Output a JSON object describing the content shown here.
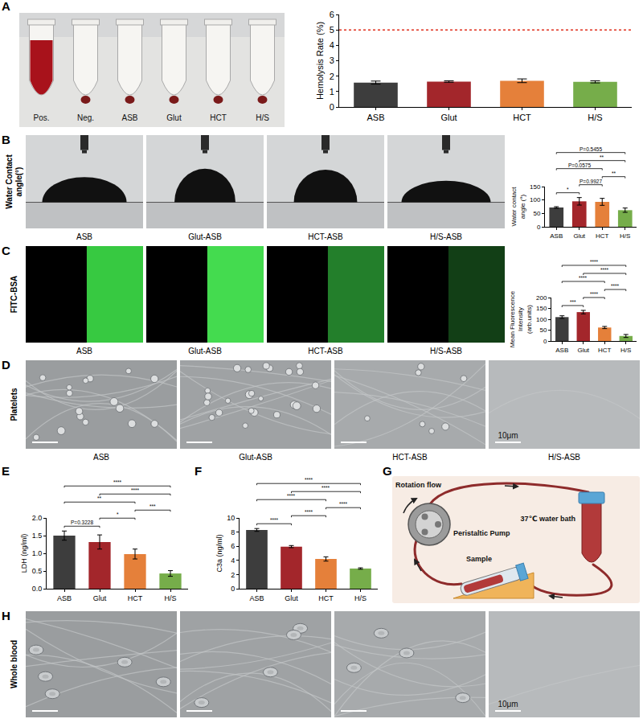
{
  "panels": [
    "A",
    "B",
    "C",
    "D",
    "E",
    "F",
    "G",
    "H"
  ],
  "figure": {
    "A": {
      "photo_labels": [
        "Pos.",
        "Neg.",
        "ASB",
        "Glut",
        "HCT",
        "H/S"
      ]
    },
    "B": {
      "row_label": "Water Contact angle(°)",
      "image_labels": [
        "ASB",
        "Glut-ASB",
        "HCT-ASB",
        "H/S-ASB"
      ]
    },
    "C": {
      "row_label": "FITC-BSA",
      "image_labels": [
        "ASB",
        "Glut-ASB",
        "HCT-ASB",
        "H/S-ASB"
      ]
    },
    "D": {
      "row_label": "Platelets",
      "image_labels": [
        "ASB",
        "Glut-ASB",
        "HCT-ASB",
        "H/S-ASB"
      ],
      "scale_label": "10μm"
    },
    "G": {
      "labels": {
        "motion": "Rotation flow",
        "pump": "Peristaltic Pump",
        "bath": "37℃ water bath",
        "sample": "Sample"
      }
    },
    "H": {
      "row_label": "Whole blood",
      "scale_label": "10μm"
    }
  },
  "chart_data": [
    {
      "panel": "A",
      "type": "bar",
      "ylabel": "Hemolysis Rate (%)",
      "categories": [
        "ASB",
        "Glut",
        "HCT",
        "H/S"
      ],
      "values": [
        1.58,
        1.65,
        1.7,
        1.63
      ],
      "errors": [
        0.1,
        0.05,
        0.12,
        0.07
      ],
      "colors": [
        "#3d3d3d",
        "#a3262b",
        "#e5803a",
        "#76ad4a"
      ],
      "ylim": [
        0,
        6
      ],
      "yticks": [
        0,
        1,
        2,
        3,
        4,
        5,
        6
      ],
      "threshold": 5
    },
    {
      "panel": "B",
      "type": "bar",
      "ylabel": "Water contact angle (°)",
      "categories": [
        "ASB",
        "Glut",
        "HCT",
        "H/S"
      ],
      "values": [
        72,
        95,
        93,
        62
      ],
      "errors": [
        3,
        14,
        13,
        8
      ],
      "colors": [
        "#3d3d3d",
        "#a3262b",
        "#e5803a",
        "#76ad4a"
      ],
      "ylim": [
        0,
        150
      ],
      "yticks": [
        0,
        50,
        100,
        150
      ],
      "comparisons": [
        {
          "a": "ASB",
          "b": "Glut",
          "label": "*"
        },
        {
          "a": "Glut",
          "b": "HCT",
          "label": "P=0.9927"
        },
        {
          "a": "HCT",
          "b": "H/S",
          "label": "**"
        },
        {
          "a": "ASB",
          "b": "HCT",
          "label": "P=0.0575"
        },
        {
          "a": "Glut",
          "b": "H/S",
          "label": "**"
        },
        {
          "a": "ASB",
          "b": "H/S",
          "label": "P=0.5455"
        }
      ]
    },
    {
      "panel": "C",
      "type": "bar",
      "ylabel": "Mean Fluorescence Intensity (arb.units)",
      "categories": [
        "ASB",
        "Glut",
        "HCT",
        "H/S"
      ],
      "values": [
        110,
        133,
        62,
        23
      ],
      "errors": [
        6,
        8,
        5,
        7
      ],
      "colors": [
        "#3d3d3d",
        "#a3262b",
        "#e5803a",
        "#76ad4a"
      ],
      "ylim": [
        0,
        200
      ],
      "yticks": [
        0,
        50,
        100,
        150,
        200
      ],
      "comparisons": [
        {
          "a": "ASB",
          "b": "Glut",
          "label": "***"
        },
        {
          "a": "Glut",
          "b": "HCT",
          "label": "****"
        },
        {
          "a": "HCT",
          "b": "H/S",
          "label": "****"
        },
        {
          "a": "ASB",
          "b": "HCT",
          "label": "****"
        },
        {
          "a": "Glut",
          "b": "H/S",
          "label": "****"
        },
        {
          "a": "ASB",
          "b": "H/S",
          "label": "****"
        }
      ]
    },
    {
      "panel": "E",
      "type": "bar",
      "ylabel": "LDH (ng/ml)",
      "categories": [
        "ASB",
        "Glut",
        "HCT",
        "H/S"
      ],
      "values": [
        1.5,
        1.32,
        0.98,
        0.43
      ],
      "errors": [
        0.13,
        0.2,
        0.14,
        0.08
      ],
      "colors": [
        "#3d3d3d",
        "#a3262b",
        "#e5803a",
        "#76ad4a"
      ],
      "ylim": [
        0,
        2
      ],
      "yticks": [
        {
          "value": 0,
          "label": "0.0"
        },
        {
          "value": 0.5,
          "label": "0.5"
        },
        {
          "value": 1,
          "label": "1.0"
        },
        {
          "value": 1.5,
          "label": "1.5"
        },
        {
          "value": 2,
          "label": "2.0"
        }
      ],
      "comparisons": [
        {
          "a": "ASB",
          "b": "Glut",
          "label": "P=0.3228"
        },
        {
          "a": "Glut",
          "b": "HCT",
          "label": "*"
        },
        {
          "a": "HCT",
          "b": "H/S",
          "label": "***"
        },
        {
          "a": "ASB",
          "b": "HCT",
          "label": "**"
        },
        {
          "a": "Glut",
          "b": "H/S",
          "label": "****"
        },
        {
          "a": "ASB",
          "b": "H/S",
          "label": "****"
        }
      ]
    },
    {
      "panel": "F",
      "type": "bar",
      "ylabel": "C3a (ng/ml)",
      "categories": [
        "ASB",
        "Glut",
        "HCT",
        "H/S"
      ],
      "values": [
        8.3,
        5.95,
        4.2,
        2.85
      ],
      "errors": [
        0.2,
        0.15,
        0.3,
        0.1
      ],
      "colors": [
        "#3d3d3d",
        "#a3262b",
        "#e5803a",
        "#76ad4a"
      ],
      "ylim": [
        0,
        10
      ],
      "yticks": [
        0,
        2,
        4,
        6,
        8,
        10
      ],
      "comparisons": [
        {
          "a": "ASB",
          "b": "Glut",
          "label": "****"
        },
        {
          "a": "Glut",
          "b": "HCT",
          "label": "****"
        },
        {
          "a": "HCT",
          "b": "H/S",
          "label": "****"
        },
        {
          "a": "ASB",
          "b": "HCT",
          "label": "****"
        },
        {
          "a": "Glut",
          "b": "H/S",
          "label": "****"
        },
        {
          "a": "ASB",
          "b": "H/S",
          "label": "****"
        }
      ]
    }
  ]
}
